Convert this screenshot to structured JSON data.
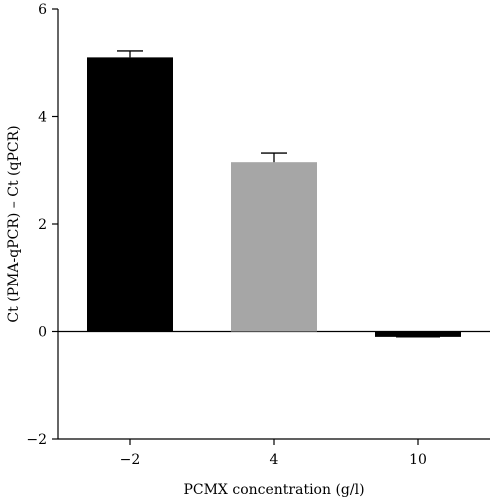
{
  "chart_data": {
    "type": "bar",
    "categories": [
      "−2",
      "4",
      "10"
    ],
    "values": [
      5.1,
      3.15,
      -0.1
    ],
    "errors": [
      0.12,
      0.17,
      0.0
    ],
    "bar_colors": [
      "#000000",
      "#a6a6a6",
      "#000000"
    ],
    "xlabel": "PCMX concentration (g/l)",
    "ylabel": "Ct (PMA-qPCR) – Ct (qPCR)",
    "ylim": [
      -2,
      6
    ],
    "yticks": [
      -2,
      0,
      2,
      4,
      6
    ],
    "ytick_labels": [
      "−2",
      "0",
      "2",
      "4",
      "6"
    ],
    "grid": false,
    "zero_line": true
  }
}
